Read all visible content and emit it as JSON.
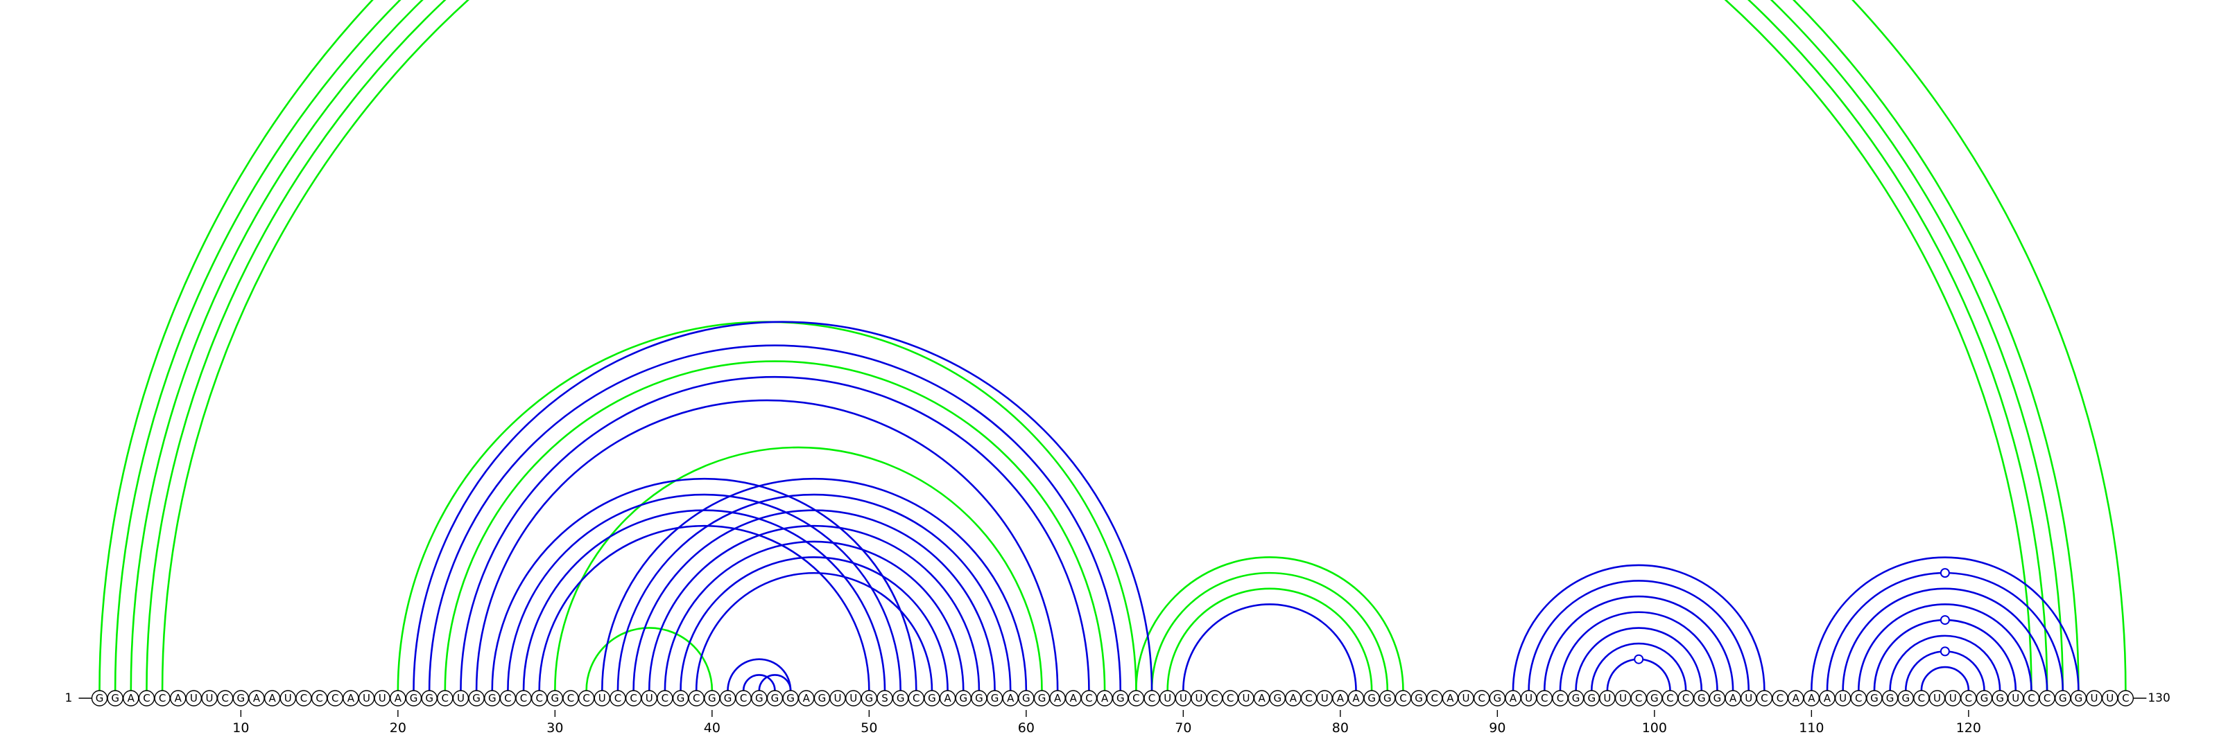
{
  "sequence": "GGACCAUUCGAAUCCCAUUAGGCUGGCCCGCCUCCUCGCGGCGGGAGUUGSGCGAGGGAGGAACAGCCUUUCCUAGACUAAGGCGCAUCGAUCCGGUUCGCCGGAUCCAAAUCGGGCUUCGGUCCGGUUC",
  "start_label": "1",
  "end_label": "130",
  "ticks": [
    10,
    20,
    30,
    40,
    50,
    60,
    70,
    80,
    90,
    100,
    110,
    120
  ],
  "colors": {
    "green": "#00ee00",
    "blue": "#0000dd"
  },
  "green_arcs": [
    [
      1,
      130
    ],
    [
      2,
      127
    ],
    [
      3,
      126
    ],
    [
      4,
      125
    ],
    [
      5,
      124
    ],
    [
      20,
      67
    ],
    [
      23,
      65
    ],
    [
      30,
      61
    ],
    [
      32,
      40
    ],
    [
      67,
      84
    ],
    [
      68,
      83
    ],
    [
      69,
      82
    ]
  ],
  "blue_arcs": [
    [
      21,
      68
    ],
    [
      22,
      66
    ],
    [
      24,
      64
    ],
    [
      25,
      62
    ],
    [
      26,
      53
    ],
    [
      27,
      52
    ],
    [
      28,
      51
    ],
    [
      29,
      50
    ],
    [
      33,
      60
    ],
    [
      34,
      59
    ],
    [
      35,
      58
    ],
    [
      36,
      57
    ],
    [
      37,
      56
    ],
    [
      38,
      55
    ],
    [
      39,
      54
    ],
    [
      41,
      45
    ],
    [
      42,
      44
    ],
    [
      43,
      45
    ],
    [
      70,
      81
    ],
    [
      91,
      107
    ],
    [
      92,
      106
    ],
    [
      93,
      105
    ],
    [
      94,
      104
    ],
    [
      95,
      103
    ],
    [
      96,
      102
    ],
    [
      97,
      101
    ],
    [
      110,
      127
    ],
    [
      111,
      126
    ],
    [
      112,
      125
    ],
    [
      113,
      124
    ],
    [
      114,
      123
    ],
    [
      115,
      122
    ],
    [
      116,
      121
    ],
    [
      117,
      120
    ]
  ],
  "markers": [
    {
      "arc": [
        1,
        130
      ],
      "color": "green"
    },
    {
      "arc": [
        97,
        101
      ],
      "color": "blue"
    },
    {
      "arc": [
        111,
        126
      ],
      "color": "blue"
    },
    {
      "arc": [
        114,
        123
      ],
      "color": "blue"
    },
    {
      "arc": [
        116,
        121
      ],
      "color": "blue"
    }
  ]
}
